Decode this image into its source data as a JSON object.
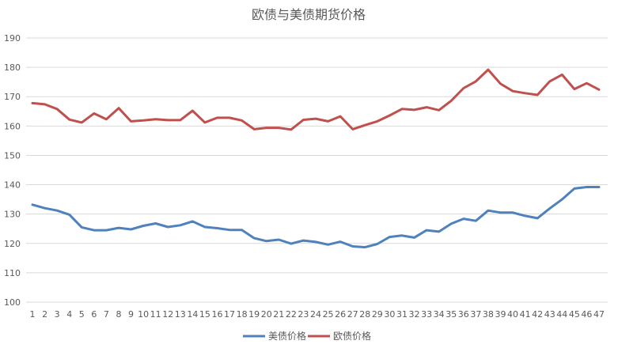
{
  "chart_data": {
    "type": "line",
    "title": "欧债与美债期货价格",
    "xlabel": "",
    "ylabel": "",
    "ylim": [
      100,
      190
    ],
    "yticks": [
      100,
      110,
      120,
      130,
      140,
      150,
      160,
      170,
      180,
      190
    ],
    "grid": true,
    "legend_position": "bottom",
    "x": [
      1,
      2,
      3,
      4,
      5,
      6,
      7,
      8,
      9,
      10,
      11,
      12,
      13,
      14,
      15,
      16,
      17,
      18,
      19,
      20,
      21,
      22,
      23,
      24,
      25,
      26,
      27,
      28,
      29,
      30,
      31,
      32,
      33,
      34,
      35,
      36,
      37,
      38,
      39,
      40,
      41,
      42,
      43,
      44,
      45,
      46,
      47
    ],
    "series": [
      {
        "name": "美债价格",
        "color": "#4f81bd",
        "values": [
          133.2,
          132.0,
          131.2,
          129.8,
          125.5,
          124.5,
          124.5,
          125.3,
          124.8,
          126.0,
          126.8,
          125.6,
          126.2,
          127.5,
          125.6,
          125.2,
          124.6,
          124.6,
          121.8,
          120.8,
          121.3,
          119.9,
          121.0,
          120.5,
          119.6,
          120.6,
          119.0,
          118.7,
          119.8,
          122.2,
          122.7,
          122.0,
          124.5,
          124.0,
          126.7,
          128.4,
          127.7,
          131.2,
          130.5,
          130.5,
          129.4,
          128.6,
          131.9,
          135.0,
          138.7,
          139.2,
          139.2
        ]
      },
      {
        "name": "欧债价格",
        "color": "#c0504d",
        "values": [
          167.8,
          167.4,
          165.8,
          162.2,
          161.2,
          164.3,
          162.3,
          166.1,
          161.6,
          161.9,
          162.3,
          162.0,
          162.0,
          165.2,
          161.2,
          162.8,
          162.8,
          161.9,
          158.9,
          159.4,
          159.4,
          158.8,
          162.1,
          162.5,
          161.6,
          163.3,
          158.9,
          160.3,
          161.6,
          163.6,
          165.8,
          165.5,
          166.4,
          165.4,
          168.6,
          172.9,
          175.2,
          179.2,
          174.4,
          171.9,
          171.2,
          170.6,
          175.2,
          177.5,
          172.6,
          174.6,
          172.4
        ]
      }
    ]
  }
}
